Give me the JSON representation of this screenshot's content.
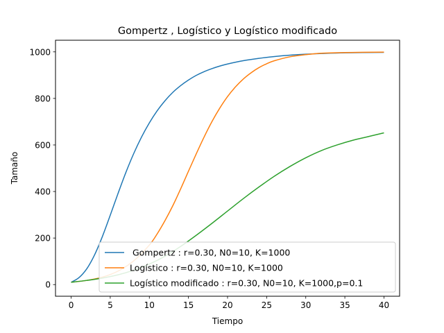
{
  "chart_data": {
    "type": "line",
    "title": "Gompertz , Logístico y Logístico modificado",
    "xlabel": "Tiempo",
    "ylabel": "Tamaño",
    "xlim": [
      -2,
      42
    ],
    "ylim": [
      -50,
      1050
    ],
    "xticks": [
      "0",
      "5",
      "10",
      "15",
      "20",
      "25",
      "30",
      "35",
      "40"
    ],
    "yticks": [
      "0",
      "200",
      "400",
      "600",
      "800",
      "1000"
    ],
    "grid": false,
    "legend_position": "lower right",
    "series": [
      {
        "name": " Gompertz : r=0.30, N0=10, K=1000",
        "color": "#1f77b4",
        "x": [
          0,
          1,
          2,
          3,
          4,
          5,
          6,
          7,
          8,
          9,
          10,
          11,
          12,
          13,
          14,
          15,
          16,
          17,
          18,
          19,
          20,
          22,
          24,
          26,
          28,
          30,
          32,
          35,
          40
        ],
        "y": [
          10,
          30,
          68,
          128,
          207,
          298,
          392,
          482,
          563,
          634,
          695,
          747,
          790,
          826,
          855,
          879,
          899,
          915,
          928,
          939,
          948,
          962,
          972,
          980,
          986,
          990,
          993,
          996,
          998
        ]
      },
      {
        "name": "Logístico : r=0.30, N0=10, K=1000",
        "color": "#ff7f0e",
        "x": [
          0,
          2,
          4,
          6,
          8,
          10,
          11,
          12,
          13,
          14,
          15,
          16,
          17,
          18,
          19,
          20,
          21,
          22,
          23,
          24,
          25,
          26,
          28,
          30,
          32,
          35,
          40
        ],
        "y": [
          10,
          18,
          32,
          58,
          102,
          170,
          218,
          275,
          339,
          411,
          487,
          562,
          634,
          700,
          758,
          808,
          849,
          883,
          910,
          932,
          949,
          962,
          979,
          988,
          994,
          997,
          999
        ]
      },
      {
        "name": "Logístico modificado : r=0.30, N0=10, K=1000,p=0.1",
        "color": "#2ca02c",
        "x": [
          0,
          2,
          4,
          6,
          8,
          10,
          12,
          14,
          16,
          18,
          20,
          22,
          24,
          26,
          28,
          30,
          32,
          34,
          36,
          38,
          40
        ],
        "y": [
          10,
          18,
          28,
          42,
          62,
          88,
          122,
          164,
          212,
          263,
          316,
          369,
          419,
          466,
          508,
          545,
          576,
          600,
          620,
          636,
          652
        ]
      }
    ]
  }
}
